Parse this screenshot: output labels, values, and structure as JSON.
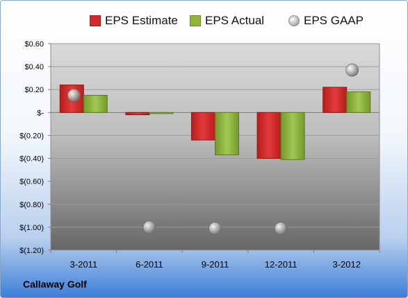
{
  "company": "Callaway Golf",
  "legend": [
    {
      "name": "EPS Estimate",
      "color": "#d42a2a",
      "kind": "bar"
    },
    {
      "name": "EPS Actual",
      "color": "#8fb53c",
      "kind": "bar"
    },
    {
      "name": "EPS GAAP",
      "color": "#b0b0b0",
      "kind": "marker"
    }
  ],
  "chart_data": {
    "type": "bar",
    "categories": [
      "3-2011",
      "6-2011",
      "9-2011",
      "12-2011",
      "3-2012"
    ],
    "series": [
      {
        "name": "EPS Estimate",
        "type": "bar",
        "color": "#d42a2a",
        "values": [
          0.24,
          -0.02,
          -0.24,
          -0.4,
          0.22
        ]
      },
      {
        "name": "EPS Actual",
        "type": "bar",
        "color": "#8fb53c",
        "values": [
          0.15,
          -0.01,
          -0.37,
          -0.41,
          0.18
        ]
      },
      {
        "name": "EPS GAAP",
        "type": "scatter",
        "color": "#b0b0b0",
        "values": [
          0.15,
          -1.0,
          -1.01,
          -1.01,
          0.37
        ]
      }
    ],
    "yticks": [
      0.6,
      0.4,
      0.2,
      0,
      -0.2,
      -0.4,
      -0.6,
      -0.8,
      -1.0,
      -1.2
    ],
    "ytick_labels": [
      "$0.60",
      "$0.40",
      "$0.20",
      "$-",
      "$(0.20)",
      "$(0.40)",
      "$(0.60)",
      "$(0.80)",
      "$(1.00)",
      "$(1.20)"
    ],
    "ylim": [
      -1.2,
      0.6
    ],
    "grid": true,
    "legend_position": "top"
  }
}
